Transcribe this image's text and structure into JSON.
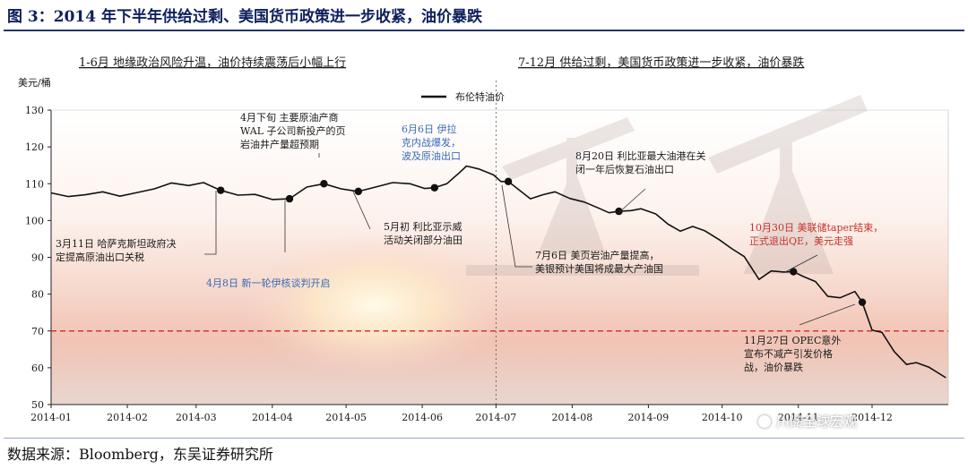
{
  "title": "图 3：2014 年下半年供给过剩、美国货币政策进一步收紧，油价暴跌",
  "source": "数据来源：Bloomberg，东吴证券研究所",
  "watermark": "川阅全球宏观",
  "colors": {
    "line": "#111111",
    "reference": "#e03030",
    "title": "#0d1f5c",
    "blue_note": "#3b6ab8",
    "red_note": "#c8322c"
  },
  "chart_data": {
    "type": "line",
    "ylabel": "美元/桶",
    "ylim": [
      50,
      130
    ],
    "yticks": [
      50,
      60,
      70,
      80,
      90,
      100,
      110,
      120,
      130
    ],
    "xlim": [
      "2014-01",
      "2015-01"
    ],
    "xtick_labels": [
      "2014-01",
      "2014-02",
      "2014-03",
      "2014-04",
      "2014-05",
      "2014-06",
      "2014-07",
      "2014-08",
      "2014-09",
      "2014-10",
      "2014-11",
      "2014-12"
    ],
    "legend": "top-center",
    "reference_line": 70,
    "phase_divider": "2014-07",
    "phases": [
      "1-6月  地缘政治风险升温，油价持续震荡后小幅上行",
      "7-12月  供给过剩，美国货币政策进一步收紧，油价暴跌"
    ],
    "series": [
      {
        "name": "布伦特油价",
        "points": [
          [
            "2014-01-01",
            107.5
          ],
          [
            "2014-01-08",
            106.5
          ],
          [
            "2014-01-15",
            107.0
          ],
          [
            "2014-01-22",
            107.8
          ],
          [
            "2014-01-29",
            106.6
          ],
          [
            "2014-02-05",
            107.6
          ],
          [
            "2014-02-12",
            108.6
          ],
          [
            "2014-02-19",
            110.2
          ],
          [
            "2014-02-26",
            109.5
          ],
          [
            "2014-03-04",
            110.3
          ],
          [
            "2014-03-11",
            108.2
          ],
          [
            "2014-03-18",
            106.9
          ],
          [
            "2014-03-25",
            107.1
          ],
          [
            "2014-04-01",
            105.7
          ],
          [
            "2014-04-08",
            105.9
          ],
          [
            "2014-04-15",
            109.1
          ],
          [
            "2014-04-22",
            110.0
          ],
          [
            "2014-04-29",
            108.6
          ],
          [
            "2014-05-06",
            107.9
          ],
          [
            "2014-05-13",
            109.1
          ],
          [
            "2014-05-20",
            110.3
          ],
          [
            "2014-05-27",
            110.0
          ],
          [
            "2014-06-02",
            108.7
          ],
          [
            "2014-06-06",
            108.9
          ],
          [
            "2014-06-11",
            110.0
          ],
          [
            "2014-06-16",
            112.9
          ],
          [
            "2014-06-19",
            114.8
          ],
          [
            "2014-06-24",
            114.0
          ],
          [
            "2014-06-30",
            112.4
          ],
          [
            "2014-07-03",
            110.6
          ],
          [
            "2014-07-06",
            110.6
          ],
          [
            "2014-07-10",
            108.5
          ],
          [
            "2014-07-15",
            105.9
          ],
          [
            "2014-07-20",
            107.0
          ],
          [
            "2014-07-25",
            107.8
          ],
          [
            "2014-07-31",
            106.0
          ],
          [
            "2014-08-06",
            105.0
          ],
          [
            "2014-08-12",
            103.3
          ],
          [
            "2014-08-16",
            102.1
          ],
          [
            "2014-08-20",
            102.5
          ],
          [
            "2014-08-25",
            102.7
          ],
          [
            "2014-08-29",
            103.2
          ],
          [
            "2014-09-04",
            101.8
          ],
          [
            "2014-09-09",
            99.0
          ],
          [
            "2014-09-14",
            97.1
          ],
          [
            "2014-09-19",
            98.4
          ],
          [
            "2014-09-24",
            97.2
          ],
          [
            "2014-09-30",
            94.7
          ],
          [
            "2014-10-05",
            92.3
          ],
          [
            "2014-10-10",
            90.2
          ],
          [
            "2014-10-16",
            84.0
          ],
          [
            "2014-10-21",
            86.3
          ],
          [
            "2014-10-26",
            86.0
          ],
          [
            "2014-10-30",
            86.1
          ],
          [
            "2014-11-03",
            84.8
          ],
          [
            "2014-11-08",
            83.4
          ],
          [
            "2014-11-13",
            79.4
          ],
          [
            "2014-11-18",
            79.0
          ],
          [
            "2014-11-24",
            80.7
          ],
          [
            "2014-11-27",
            77.8
          ],
          [
            "2014-12-01",
            70.2
          ],
          [
            "2014-12-05",
            69.6
          ],
          [
            "2014-12-10",
            64.4
          ],
          [
            "2014-12-15",
            60.9
          ],
          [
            "2014-12-19",
            61.4
          ],
          [
            "2014-12-24",
            60.2
          ],
          [
            "2014-12-31",
            57.3
          ]
        ]
      }
    ],
    "markers": [
      {
        "date": "2014-03-11",
        "value": 108.2
      },
      {
        "date": "2014-04-08",
        "value": 105.9
      },
      {
        "date": "2014-04-22",
        "value": 110.0
      },
      {
        "date": "2014-05-06",
        "value": 107.9
      },
      {
        "date": "2014-06-06",
        "value": 108.9
      },
      {
        "date": "2014-07-06",
        "value": 110.6
      },
      {
        "date": "2014-08-20",
        "value": 102.5
      },
      {
        "date": "2014-10-30",
        "value": 86.1
      },
      {
        "date": "2014-11-27",
        "value": 77.8
      }
    ],
    "annotations": [
      {
        "color": "black",
        "lines": [
          "4月下旬  主要原油产商",
          "WAL 子公司新投产的页",
          "岩油井产量超预期"
        ]
      },
      {
        "color": "blue",
        "lines": [
          "6月6日  伊拉",
          "克内战爆发，",
          "波及原油出口"
        ]
      },
      {
        "color": "black",
        "lines": [
          "3月11日  哈萨克斯坦政府决",
          "定提高原油出口关税"
        ]
      },
      {
        "color": "blue",
        "lines": [
          "4月8日  新一轮伊核谈判开启"
        ]
      },
      {
        "color": "black",
        "lines": [
          "5月初  利比亚示威",
          "活动关闭部分油田"
        ]
      },
      {
        "color": "black",
        "lines": [
          "8月20日  利比亚最大油港在关",
          "闭一年后恢复石油出口"
        ]
      },
      {
        "color": "black",
        "lines": [
          "7月6日  美页岩油产量提高，",
          "美银预计美国将成最大产油国"
        ]
      },
      {
        "color": "red",
        "lines": [
          "10月30日  美联储taper结束，",
          "正式退出QE，美元走强"
        ]
      },
      {
        "color": "black",
        "lines": [
          "11月27日  OPEC意外",
          "宣布不减产引发价格",
          "战，油价暴跌"
        ]
      }
    ]
  }
}
